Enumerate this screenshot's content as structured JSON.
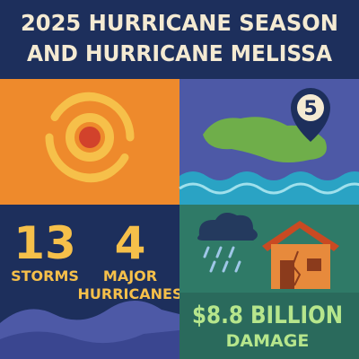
{
  "header": {
    "title_lines": [
      "2025 HURRICANE SEASON",
      "AND HURRICANE MELISSA"
    ]
  },
  "map_panel": {
    "category_badge": "5"
  },
  "stats": [
    {
      "number": "13",
      "label_lines": [
        "STORMS"
      ]
    },
    {
      "number": "4",
      "label_lines": [
        "MAJOR",
        "HURRICANES"
      ]
    }
  ],
  "damage": {
    "amount": "$8.8 BILLION",
    "label": "DAMAGE"
  }
}
